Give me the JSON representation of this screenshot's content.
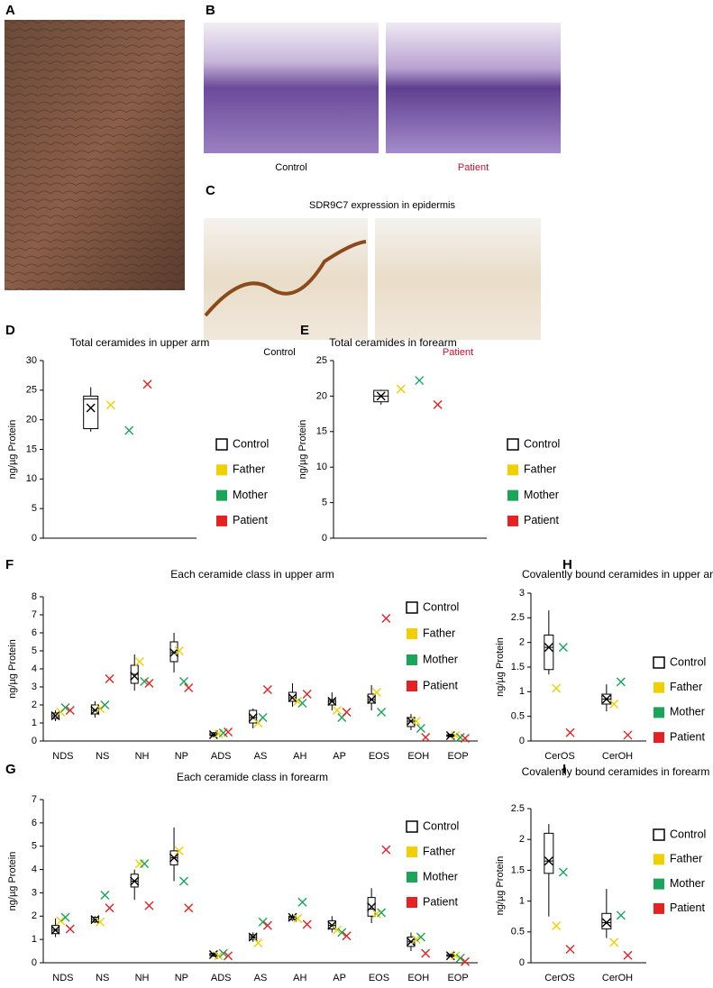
{
  "figure": {
    "label_a": "A",
    "label_b": "B",
    "label_c": "C",
    "b_captions": [
      "Control",
      "Patient"
    ],
    "c_title": "SDR9C7 expression in epidermis",
    "c_captions": [
      "Control",
      "Patient"
    ]
  },
  "chart_data": [
    {
      "type": "box",
      "label": "D",
      "title": "Total ceramides in upper arm",
      "ylabel": "ng/µg Protein",
      "categories": [
        null
      ],
      "ylim": [
        0,
        30
      ],
      "yticks": [
        0,
        5,
        10,
        15,
        20,
        25,
        30
      ],
      "box": {
        "name": "Control",
        "color": "#000000",
        "min": [
          18
        ],
        "q1": [
          18.5
        ],
        "median": [
          23.5
        ],
        "q3": [
          24
        ],
        "max": [
          25.5
        ],
        "mean": [
          22
        ]
      },
      "series": [
        {
          "name": "Father",
          "color": "#f0d000",
          "values": [
            22.5
          ]
        },
        {
          "name": "Mother",
          "color": "#1aa55a",
          "values": [
            18.2
          ]
        },
        {
          "name": "Patient",
          "color": "#e52222",
          "values": [
            26
          ]
        }
      ]
    },
    {
      "type": "box",
      "label": "E",
      "title": "Total ceramides in forearm",
      "ylabel": "ng/µg Protein",
      "categories": [
        null
      ],
      "ylim": [
        0,
        25
      ],
      "yticks": [
        0,
        5,
        10,
        15,
        20,
        25
      ],
      "box": {
        "name": "Control",
        "color": "#000000",
        "min": [
          18.8
        ],
        "q1": [
          19.2
        ],
        "median": [
          20
        ],
        "q3": [
          20.8
        ],
        "max": [
          20.9
        ],
        "mean": [
          20
        ]
      },
      "series": [
        {
          "name": "Father",
          "color": "#f0d000",
          "values": [
            21
          ]
        },
        {
          "name": "Mother",
          "color": "#1aa55a",
          "values": [
            22.2
          ]
        },
        {
          "name": "Patient",
          "color": "#e52222",
          "values": [
            18.8
          ]
        }
      ]
    },
    {
      "type": "box",
      "label": "F",
      "title": "Each ceramide class in upper arm",
      "ylabel": "ng/µg Protein",
      "categories": [
        "NDS",
        "NS",
        "NH",
        "NP",
        "ADS",
        "AS",
        "AH",
        "AP",
        "EOS",
        "EOH",
        "EOP"
      ],
      "ylim": [
        0,
        8
      ],
      "yticks": [
        0,
        1,
        2,
        3,
        4,
        5,
        6,
        7,
        8
      ],
      "box": {
        "name": "Control",
        "color": "#000000",
        "min": [
          1.1,
          1.3,
          2.8,
          3.8,
          0.2,
          0.7,
          1.9,
          1.7,
          1.7,
          0.6,
          0.2
        ],
        "q1": [
          1.25,
          1.5,
          3.2,
          4.4,
          0.3,
          1.0,
          2.2,
          2.0,
          2.1,
          0.8,
          0.25
        ],
        "median": [
          1.4,
          1.7,
          3.7,
          4.9,
          0.35,
          1.3,
          2.4,
          2.2,
          2.3,
          1.1,
          0.3
        ],
        "q3": [
          1.55,
          2.0,
          4.2,
          5.5,
          0.45,
          1.7,
          2.7,
          2.3,
          2.6,
          1.3,
          0.35
        ],
        "max": [
          1.7,
          2.2,
          4.8,
          6.0,
          0.5,
          1.8,
          3.2,
          2.7,
          3.1,
          1.5,
          0.4
        ],
        "mean": [
          1.4,
          1.7,
          3.6,
          4.9,
          0.35,
          1.3,
          2.4,
          2.2,
          2.3,
          1.1,
          0.3
        ]
      },
      "series": [
        {
          "name": "Father",
          "color": "#f0d000",
          "values": [
            1.6,
            1.8,
            4.4,
            5.0,
            0.4,
            1.0,
            2.2,
            1.7,
            2.7,
            1.1,
            0.3
          ]
        },
        {
          "name": "Mother",
          "color": "#1aa55a",
          "values": [
            1.85,
            2.0,
            3.3,
            3.3,
            0.45,
            1.3,
            2.1,
            1.3,
            1.6,
            0.7,
            0.2
          ]
        },
        {
          "name": "Patient",
          "color": "#e52222",
          "values": [
            1.7,
            3.45,
            3.2,
            2.95,
            0.5,
            2.85,
            2.6,
            1.6,
            6.8,
            0.2,
            0.15
          ]
        }
      ]
    },
    {
      "type": "box",
      "label": "G",
      "title": "Each ceramide class in forearm",
      "ylabel": "ng/µg Protein",
      "categories": [
        "NDS",
        "NS",
        "NH",
        "NP",
        "ADS",
        "AS",
        "AH",
        "AP",
        "EOS",
        "EOH",
        "EOP"
      ],
      "ylim": [
        0,
        7
      ],
      "yticks": [
        0,
        1,
        2,
        3,
        4,
        5,
        6,
        7
      ],
      "box": {
        "name": "Control",
        "color": "#000000",
        "min": [
          1.1,
          1.7,
          2.7,
          3.5,
          0.25,
          0.9,
          1.8,
          1.3,
          1.7,
          0.5,
          0.25
        ],
        "q1": [
          1.25,
          1.75,
          3.25,
          4.2,
          0.3,
          1.0,
          1.85,
          1.45,
          2.0,
          0.7,
          0.28
        ],
        "median": [
          1.4,
          1.85,
          3.5,
          4.5,
          0.35,
          1.1,
          1.95,
          1.6,
          2.3,
          0.9,
          0.3
        ],
        "q3": [
          1.6,
          1.95,
          3.8,
          4.8,
          0.4,
          1.2,
          2.0,
          1.8,
          2.8,
          1.1,
          0.35
        ],
        "max": [
          1.9,
          2.0,
          4.0,
          5.8,
          0.45,
          1.3,
          2.1,
          2.0,
          3.2,
          1.3,
          0.4
        ],
        "mean": [
          1.4,
          1.85,
          3.5,
          4.5,
          0.35,
          1.1,
          1.95,
          1.6,
          2.4,
          0.9,
          0.3
        ]
      },
      "series": [
        {
          "name": "Father",
          "color": "#f0d000",
          "values": [
            1.8,
            1.75,
            4.25,
            4.8,
            0.3,
            0.85,
            1.9,
            1.4,
            2.1,
            1.0,
            0.3
          ]
        },
        {
          "name": "Mother",
          "color": "#1aa55a",
          "values": [
            1.95,
            2.9,
            4.25,
            3.5,
            0.4,
            1.75,
            2.6,
            1.3,
            2.15,
            1.1,
            0.2
          ]
        },
        {
          "name": "Patient",
          "color": "#e52222",
          "values": [
            1.45,
            2.35,
            2.45,
            2.35,
            0.3,
            1.6,
            1.65,
            1.15,
            4.85,
            0.4,
            0.05
          ]
        }
      ]
    },
    {
      "type": "box",
      "label": "H",
      "title": "Covalently bound ceramides in upper arm",
      "ylabel": "ng/µg Protein",
      "categories": [
        "CerOS",
        "CerOH"
      ],
      "ylim": [
        0,
        3
      ],
      "yticks": [
        0,
        0.5,
        1,
        1.5,
        2,
        2.5,
        3
      ],
      "box": {
        "name": "Control",
        "color": "#000000",
        "min": [
          1.35,
          0.6
        ],
        "q1": [
          1.45,
          0.75
        ],
        "median": [
          1.9,
          0.85
        ],
        "q3": [
          2.15,
          0.95
        ],
        "max": [
          2.65,
          1.15
        ],
        "mean": [
          1.9,
          0.85
        ]
      },
      "series": [
        {
          "name": "Father",
          "color": "#f0d000",
          "values": [
            1.07,
            0.75
          ]
        },
        {
          "name": "Mother",
          "color": "#1aa55a",
          "values": [
            1.9,
            1.2
          ]
        },
        {
          "name": "Patient",
          "color": "#e52222",
          "values": [
            0.17,
            0.12
          ]
        }
      ]
    },
    {
      "type": "box",
      "label": "I",
      "title": "Covalently bound ceramides in forearm",
      "ylabel": "ng/µg Protein",
      "categories": [
        "CerOS",
        "CerOH"
      ],
      "ylim": [
        0,
        2.5
      ],
      "yticks": [
        0,
        0.5,
        1,
        1.5,
        2,
        2.5
      ],
      "box": {
        "name": "Control",
        "color": "#000000",
        "min": [
          0.75,
          0.4
        ],
        "q1": [
          1.45,
          0.55
        ],
        "median": [
          1.65,
          0.65
        ],
        "q3": [
          2.1,
          0.8
        ],
        "max": [
          2.25,
          1.2
        ],
        "mean": [
          1.65,
          0.65
        ]
      },
      "series": [
        {
          "name": "Father",
          "color": "#f0d000",
          "values": [
            0.6,
            0.33
          ]
        },
        {
          "name": "Mother",
          "color": "#1aa55a",
          "values": [
            1.47,
            0.77
          ]
        },
        {
          "name": "Patient",
          "color": "#e52222",
          "values": [
            0.22,
            0.12
          ]
        }
      ]
    }
  ]
}
